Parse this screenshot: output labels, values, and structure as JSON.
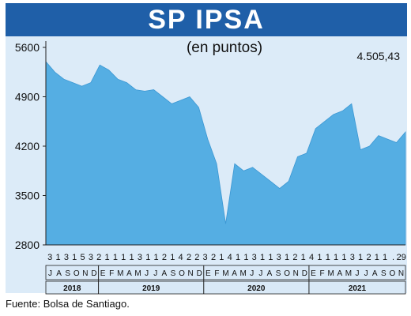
{
  "header": {
    "title": "SP IPSA",
    "subtitle": "(en puntos)",
    "last_value": "4.505,43"
  },
  "footer": {
    "source": "Fuente: Bolsa de Santiago."
  },
  "colors": {
    "title_bg": "#1f5fa8",
    "plot_bg": "#dcebf8",
    "area": "#55aee3",
    "axis_band": "#d9e9f7"
  },
  "chart_data": {
    "type": "area",
    "title": "SP IPSA",
    "subtitle": "(en puntos)",
    "ylim": [
      2800,
      5600
    ],
    "yticks": [
      "5600",
      "4900",
      "4200",
      "3500",
      "2800"
    ],
    "ytick_values": [
      5600,
      4900,
      4200,
      3500,
      2800
    ],
    "grid": false,
    "day_labels": [
      "3",
      "1",
      "3",
      "1",
      "5",
      "3",
      "2",
      "1",
      "1",
      "1",
      "1",
      "3",
      "1",
      "1",
      "2",
      "1",
      "4",
      "2",
      "2",
      "3",
      "2",
      "1",
      "4",
      "1",
      "1",
      "3",
      "1",
      "1",
      "3",
      "1",
      "2",
      "1",
      "4",
      "1",
      "1",
      "1",
      "1",
      "3",
      "1",
      "2",
      "1",
      "1",
      ".",
      "29"
    ],
    "month_labels": [
      "J",
      "A",
      "S",
      "O",
      "N",
      "D",
      "E",
      "F",
      "M",
      "A",
      "M",
      "J",
      "J",
      "A",
      "S",
      "O",
      "N",
      "D",
      "E",
      "F",
      "M",
      "A",
      "M",
      "J",
      "J",
      "A",
      "S",
      "O",
      "N",
      "D",
      "E",
      "F",
      "M",
      "A",
      "M",
      "J",
      "J",
      "A",
      "S",
      "O",
      "N"
    ],
    "year_labels": [
      "2018",
      "2019",
      "2020",
      "2021"
    ],
    "x": [
      "2018-07",
      "2018-08",
      "2018-09",
      "2018-10",
      "2018-11",
      "2018-12",
      "2019-01",
      "2019-02",
      "2019-03",
      "2019-04",
      "2019-05",
      "2019-06",
      "2019-07",
      "2019-08",
      "2019-09",
      "2019-10",
      "2019-11",
      "2019-12",
      "2020-01",
      "2020-02",
      "2020-03",
      "2020-04",
      "2020-05",
      "2020-06",
      "2020-07",
      "2020-08",
      "2020-09",
      "2020-10",
      "2020-11",
      "2020-12",
      "2021-01",
      "2021-02",
      "2021-03",
      "2021-04",
      "2021-05",
      "2021-06",
      "2021-07",
      "2021-08",
      "2021-09",
      "2021-10",
      "2021-11"
    ],
    "values": [
      5400,
      5250,
      5150,
      5100,
      5050,
      5100,
      5350,
      5280,
      5150,
      5100,
      5000,
      4980,
      5000,
      4900,
      4800,
      4850,
      4900,
      4750,
      4300,
      3950,
      3100,
      3950,
      3850,
      3900,
      3800,
      3700,
      3600,
      3700,
      4050,
      4100,
      4450,
      4550,
      4650,
      4700,
      4800,
      4150,
      4200,
      4350,
      4300,
      4250,
      4400
    ],
    "series": [
      {
        "values": [
          5400,
          5250,
          5150,
          5100,
          5050,
          5100,
          5350,
          5280,
          5150,
          5100,
          5000,
          4980,
          5000,
          4900,
          4800,
          4850,
          4900,
          4750,
          4300,
          3950,
          3100,
          3950,
          3850,
          3900,
          3800,
          3700,
          3600,
          3700,
          4050,
          4100,
          4450,
          4550,
          4650,
          4700,
          4800,
          4150,
          4200,
          4350,
          4300,
          4250,
          4400
        ]
      }
    ],
    "last_value": 4505.43
  }
}
